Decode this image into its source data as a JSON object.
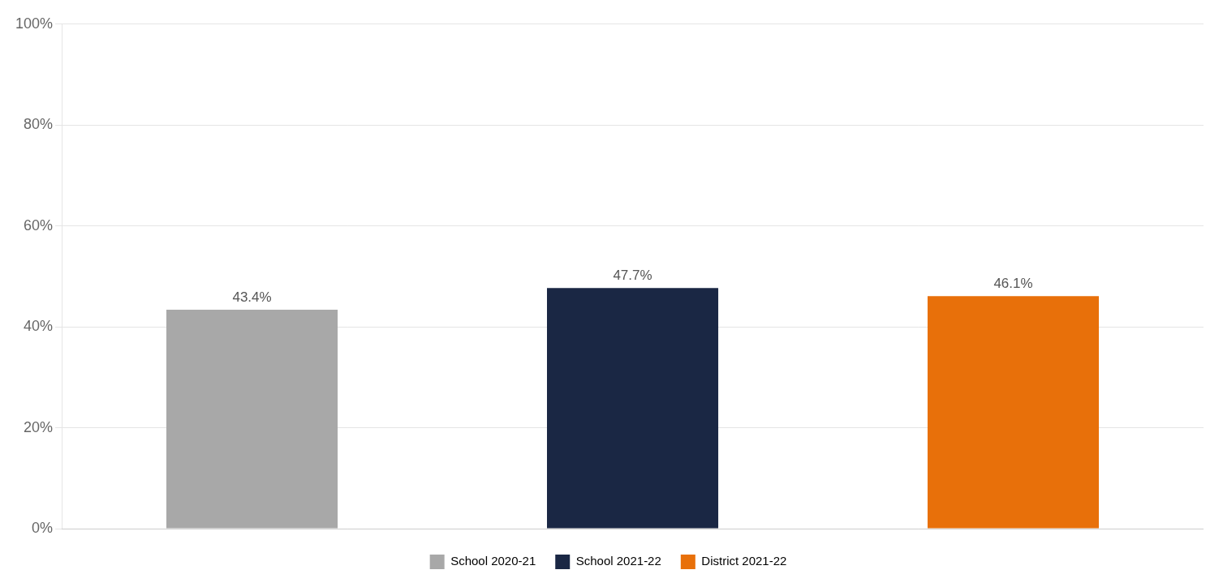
{
  "chart_data": {
    "type": "bar",
    "categories": [
      "School 2020-21",
      "School 2021-22",
      "District 2021-22"
    ],
    "values": [
      43.4,
      47.7,
      46.1
    ],
    "value_labels": [
      "43.4%",
      "47.7%",
      "46.1%"
    ],
    "colors": [
      "#a8a8a8",
      "#1a2744",
      "#e8700a"
    ],
    "ylim": [
      0,
      100
    ],
    "yticks": [
      {
        "value": 0,
        "label": "0%"
      },
      {
        "value": 20,
        "label": "20%"
      },
      {
        "value": 40,
        "label": "40%"
      },
      {
        "value": 60,
        "label": "60%"
      },
      {
        "value": 80,
        "label": "80%"
      },
      {
        "value": 100,
        "label": "100%"
      }
    ],
    "grid": true,
    "legend": "bottom",
    "data_labels": true,
    "tick_labels": "y"
  }
}
